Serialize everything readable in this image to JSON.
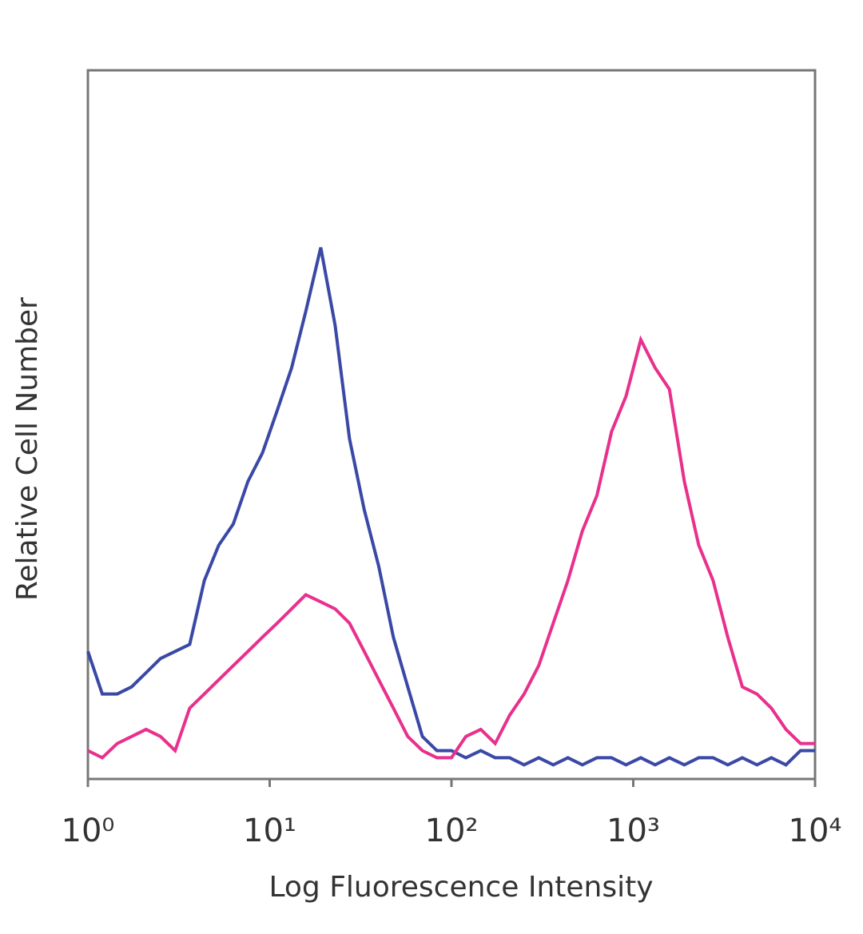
{
  "chart_data": {
    "type": "line",
    "x_label": "Log Fluorescence Intensity",
    "y_label": "Relative Cell Number",
    "log_x": true,
    "xlim": [
      1,
      10000
    ],
    "xticks": [
      {
        "value": 1,
        "label": "10⁰"
      },
      {
        "value": 10,
        "label": "10¹"
      },
      {
        "value": 100,
        "label": "10²"
      },
      {
        "value": 1000,
        "label": "10³"
      },
      {
        "value": 10000,
        "label": "10⁴"
      }
    ],
    "ylim": [
      0,
      100
    ],
    "x": [
      1,
      1.2,
      1.45,
      1.74,
      2.09,
      2.51,
      3.02,
      3.63,
      4.37,
      5.25,
      6.31,
      7.59,
      9.12,
      11,
      13.2,
      15.8,
      19.1,
      22.9,
      27.5,
      33.1,
      39.8,
      47.9,
      57.5,
      69.2,
      83.2,
      100,
      120,
      145,
      174,
      209,
      251,
      302,
      363,
      437,
      525,
      631,
      759,
      912,
      1100,
      1320,
      1580,
      1910,
      2290,
      2750,
      3310,
      3980,
      4790,
      5750,
      6920,
      8320,
      10000
    ],
    "series": [
      {
        "color": "#3a48a6",
        "values": [
          18,
          12,
          12,
          13,
          15,
          17,
          18,
          19,
          28,
          33,
          36,
          42,
          46,
          52,
          58,
          66,
          75,
          64,
          48,
          38,
          30,
          20,
          13,
          6,
          4,
          4,
          3,
          4,
          3,
          3,
          2,
          3,
          2,
          3,
          2,
          3,
          3,
          2,
          3,
          2,
          3,
          2,
          3,
          3,
          2,
          3,
          2,
          3,
          2,
          4,
          4
        ]
      },
      {
        "color": "#e8308c",
        "values": [
          4,
          3,
          5,
          6,
          7,
          6,
          4,
          10,
          12,
          14,
          16,
          18,
          20,
          22,
          24,
          26,
          25,
          24,
          22,
          18,
          14,
          10,
          6,
          4,
          3,
          3,
          6,
          7,
          5,
          9,
          12,
          16,
          22,
          28,
          35,
          40,
          49,
          54,
          62,
          58,
          55,
          42,
          33,
          28,
          20,
          13,
          12,
          10,
          7,
          5,
          5
        ]
      }
    ]
  }
}
